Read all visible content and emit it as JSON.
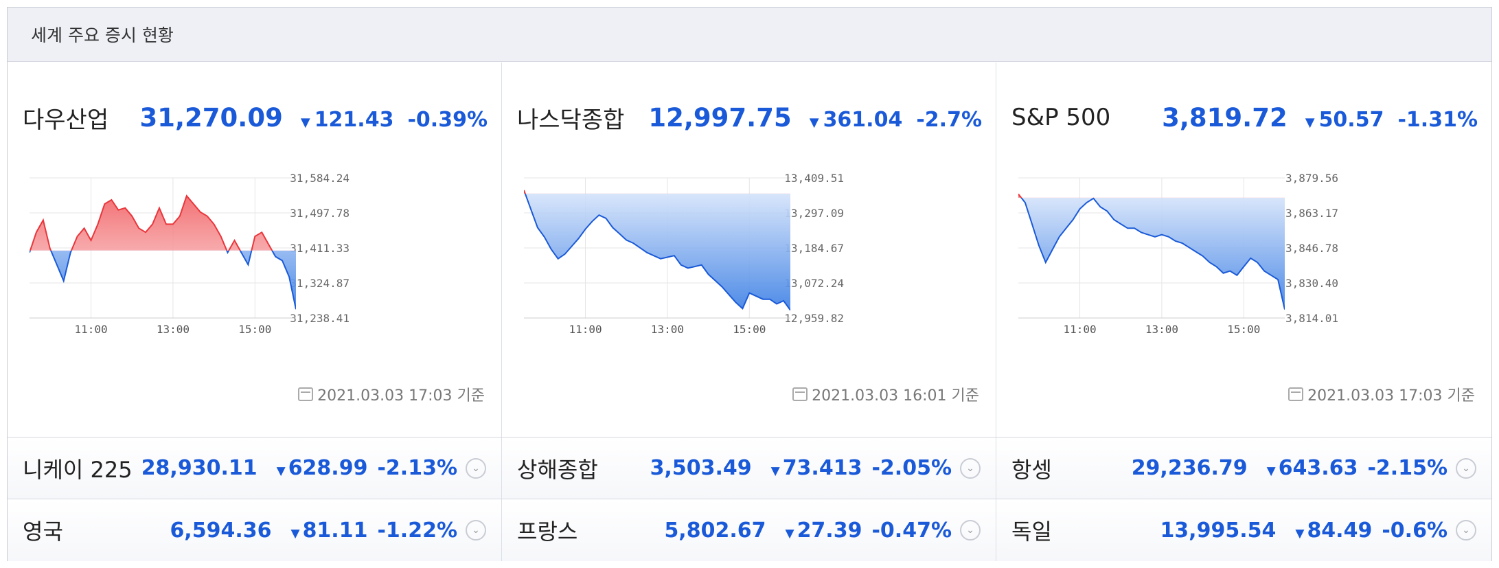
{
  "header": {
    "title": "세계 주요 증시 현황"
  },
  "colors": {
    "down": "#1a5ad8",
    "up": "#e8363b",
    "grid": "#e6e6e6",
    "axis": "#cccccc"
  },
  "icons": {
    "arrow": "▼",
    "calendar": "calendar-icon",
    "toggle": "chevron-down-icon"
  },
  "panels": [
    {
      "name": "다우산업",
      "price": "31,270.09",
      "arrow": "▼",
      "change": "121.43",
      "rate": "-0.39%",
      "stamp": "2021.03.03 17:03 기준"
    },
    {
      "name": "나스닥종합",
      "price": "12,997.75",
      "arrow": "▼",
      "change": "361.04",
      "rate": "-2.7%",
      "stamp": "2021.03.03 16:01 기준"
    },
    {
      "name": "S&P 500",
      "price": "3,819.72",
      "arrow": "▼",
      "change": "50.57",
      "rate": "-1.31%",
      "stamp": "2021.03.03 17:03 기준"
    }
  ],
  "rows": [
    [
      {
        "name": "니케이 225",
        "price": "28,930.11",
        "arrow": "▼",
        "change": "628.99",
        "rate": "-2.13%"
      },
      {
        "name": "상해종합",
        "price": "3,503.49",
        "arrow": "▼",
        "change": "73.413",
        "rate": "-2.05%"
      },
      {
        "name": "항셍",
        "price": "29,236.79",
        "arrow": "▼",
        "change": "643.63",
        "rate": "-2.15%"
      }
    ],
    [
      {
        "name": "영국",
        "price": "6,594.36",
        "arrow": "▼",
        "change": "81.11",
        "rate": "-1.22%"
      },
      {
        "name": "프랑스",
        "price": "5,802.67",
        "arrow": "▼",
        "change": "27.39",
        "rate": "-0.47%"
      },
      {
        "name": "독일",
        "price": "13,995.54",
        "arrow": "▼",
        "change": "84.49",
        "rate": "-0.6%"
      }
    ]
  ],
  "chart_data": [
    {
      "type": "area",
      "x_ticks": [
        "11:00",
        "13:00",
        "15:00"
      ],
      "y_ticks": [
        "31,584.24",
        "31,497.78",
        "31,411.33",
        "31,324.87",
        "31,238.41"
      ],
      "ylim": [
        31238.41,
        31584.24
      ],
      "baseline": 31405,
      "x": [
        "09:30",
        "09:40",
        "09:50",
        "10:00",
        "10:10",
        "10:20",
        "10:30",
        "10:40",
        "10:50",
        "11:00",
        "11:10",
        "11:20",
        "11:30",
        "11:40",
        "11:50",
        "12:00",
        "12:10",
        "12:20",
        "12:30",
        "12:40",
        "12:50",
        "13:00",
        "13:10",
        "13:20",
        "13:30",
        "13:40",
        "13:50",
        "14:00",
        "14:10",
        "14:20",
        "14:30",
        "14:40",
        "14:50",
        "15:00",
        "15:10",
        "15:20",
        "15:30",
        "15:40",
        "15:50",
        "16:00"
      ],
      "y": [
        31400,
        31450,
        31480,
        31410,
        31370,
        31330,
        31400,
        31440,
        31460,
        31430,
        31470,
        31520,
        31530,
        31505,
        31510,
        31490,
        31460,
        31450,
        31470,
        31510,
        31470,
        31470,
        31490,
        31540,
        31520,
        31500,
        31490,
        31470,
        31440,
        31400,
        31430,
        31400,
        31370,
        31440,
        31450,
        31420,
        31390,
        31380,
        31340,
        31260
      ]
    },
    {
      "type": "area",
      "x_ticks": [
        "11:00",
        "13:00",
        "15:00"
      ],
      "y_ticks": [
        "13,409.51",
        "13,297.09",
        "13,184.67",
        "13,072.24",
        "12,959.82"
      ],
      "ylim": [
        12959.82,
        13409.51
      ],
      "baseline": 13359,
      "x": [
        "09:30",
        "09:40",
        "09:50",
        "10:00",
        "10:10",
        "10:20",
        "10:30",
        "10:40",
        "10:50",
        "11:00",
        "11:10",
        "11:20",
        "11:30",
        "11:40",
        "11:50",
        "12:00",
        "12:10",
        "12:20",
        "12:30",
        "12:40",
        "12:50",
        "13:00",
        "13:10",
        "13:20",
        "13:30",
        "13:40",
        "13:50",
        "14:00",
        "14:10",
        "14:20",
        "14:30",
        "14:40",
        "14:50",
        "15:00",
        "15:10",
        "15:20",
        "15:30",
        "15:40",
        "15:50",
        "16:00"
      ],
      "y": [
        13370,
        13310,
        13250,
        13220,
        13180,
        13150,
        13165,
        13190,
        13215,
        13245,
        13270,
        13290,
        13280,
        13250,
        13230,
        13210,
        13200,
        13185,
        13170,
        13160,
        13150,
        13155,
        13160,
        13130,
        13120,
        13125,
        13130,
        13100,
        13080,
        13060,
        13035,
        13010,
        12990,
        13040,
        13030,
        13020,
        13020,
        13005,
        13015,
        12985
      ]
    },
    {
      "type": "area",
      "x_ticks": [
        "11:00",
        "13:00",
        "15:00"
      ],
      "y_ticks": [
        "3,879.56",
        "3,863.17",
        "3,846.78",
        "3,830.40",
        "3,814.01"
      ],
      "ylim": [
        3814.01,
        3879.56
      ],
      "baseline": 3870.3,
      "x": [
        "09:30",
        "09:40",
        "09:50",
        "10:00",
        "10:10",
        "10:20",
        "10:30",
        "10:40",
        "10:50",
        "11:00",
        "11:10",
        "11:20",
        "11:30",
        "11:40",
        "11:50",
        "12:00",
        "12:10",
        "12:20",
        "12:30",
        "12:40",
        "12:50",
        "13:00",
        "13:10",
        "13:20",
        "13:30",
        "13:40",
        "13:50",
        "14:00",
        "14:10",
        "14:20",
        "14:30",
        "14:40",
        "14:50",
        "15:00",
        "15:10",
        "15:20",
        "15:30",
        "15:40",
        "15:50",
        "16:00"
      ],
      "y": [
        3872,
        3868,
        3858,
        3848,
        3840,
        3846,
        3852,
        3856,
        3860,
        3865,
        3868,
        3870,
        3866,
        3864,
        3860,
        3858,
        3856,
        3856,
        3854,
        3853,
        3852,
        3853,
        3852,
        3850,
        3849,
        3847,
        3845,
        3843,
        3840,
        3838,
        3835,
        3836,
        3834,
        3838,
        3842,
        3840,
        3836,
        3834,
        3832,
        3818
      ]
    }
  ]
}
